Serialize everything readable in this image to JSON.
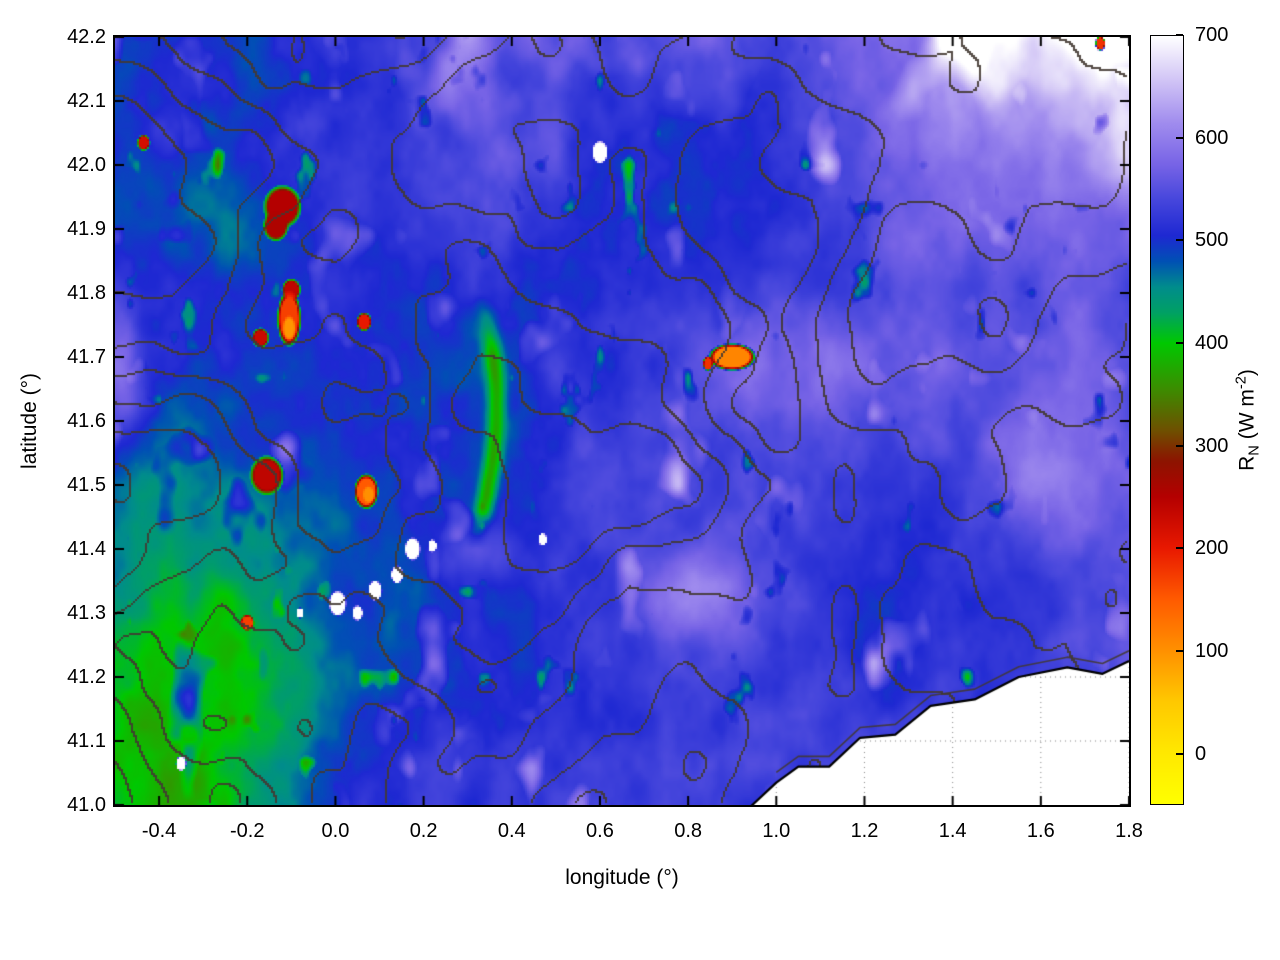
{
  "figure": {
    "background": "#ffffff"
  },
  "chart_data": {
    "type": "heatmap",
    "title": "",
    "xlabel": "longitude (°)",
    "ylabel": "latitude (°)",
    "x_range": [
      -0.5,
      1.8
    ],
    "y_range": [
      41.0,
      42.2
    ],
    "x_ticks": [
      -0.4,
      -0.2,
      0.0,
      0.2,
      0.4,
      0.6,
      0.8,
      1.0,
      1.2,
      1.4,
      1.6,
      1.8
    ],
    "x_tick_labels": [
      "-0.4",
      "-0.2",
      "0.0",
      "0.2",
      "0.4",
      "0.6",
      "0.8",
      "1.0",
      "1.2",
      "1.4",
      "1.6",
      "1.8"
    ],
    "y_ticks": [
      41.0,
      41.1,
      41.2,
      41.3,
      41.4,
      41.5,
      41.6,
      41.7,
      41.8,
      41.9,
      42.0,
      42.1,
      42.2
    ],
    "y_tick_labels": [
      "41.0",
      "41.1",
      "41.2",
      "41.3",
      "41.4",
      "41.5",
      "41.6",
      "41.7",
      "41.8",
      "41.9",
      "42.0",
      "42.1",
      "42.2"
    ],
    "legend_position": "right-colorbar",
    "grid": "dotted, visible only over white sea area",
    "colorbar": {
      "label_parts": {
        "symbol": "R",
        "subscript": "N",
        "units": " (W m",
        "exponent": "-2",
        "close": ")"
      },
      "range": [
        -50,
        700
      ],
      "ticks": [
        0,
        100,
        200,
        300,
        400,
        500,
        600,
        700
      ],
      "tick_labels": [
        "0",
        "100",
        "200",
        "300",
        "400",
        "500",
        "600",
        "700"
      ],
      "palette": [
        {
          "v": -50,
          "c": "#ffff00"
        },
        {
          "v": 0,
          "c": "#ffe800"
        },
        {
          "v": 50,
          "c": "#ffc800"
        },
        {
          "v": 100,
          "c": "#ff9000"
        },
        {
          "v": 150,
          "c": "#ff5a00"
        },
        {
          "v": 200,
          "c": "#e81800"
        },
        {
          "v": 250,
          "c": "#b40000"
        },
        {
          "v": 285,
          "c": "#8c1400"
        },
        {
          "v": 315,
          "c": "#6e5000"
        },
        {
          "v": 355,
          "c": "#3c8c00"
        },
        {
          "v": 400,
          "c": "#00c800"
        },
        {
          "v": 430,
          "c": "#00a064"
        },
        {
          "v": 455,
          "c": "#008c8c"
        },
        {
          "v": 480,
          "c": "#0050b4"
        },
        {
          "v": 505,
          "c": "#1e28d2"
        },
        {
          "v": 540,
          "c": "#4646dc"
        },
        {
          "v": 575,
          "c": "#7864e6"
        },
        {
          "v": 615,
          "c": "#a08cee"
        },
        {
          "v": 655,
          "c": "#cfc2f5"
        },
        {
          "v": 700,
          "c": "#ffffff"
        }
      ]
    },
    "contours": {
      "levels": [
        0.34,
        0.42,
        0.5,
        0.58,
        0.66
      ],
      "color": "#423832",
      "meaning": "unlabeled terrain contour overlay"
    },
    "field": {
      "base": 520,
      "hotspots": [
        {
          "x": -0.12,
          "y": 41.935,
          "rx": 0.045,
          "ry": 0.035,
          "v": 250
        },
        {
          "x": -0.135,
          "y": 41.905,
          "rx": 0.03,
          "ry": 0.025,
          "v": 255
        },
        {
          "x": -0.1,
          "y": 41.805,
          "rx": 0.022,
          "ry": 0.018,
          "v": 240
        },
        {
          "x": -0.105,
          "y": 41.76,
          "rx": 0.028,
          "ry": 0.045,
          "v": 170
        },
        {
          "x": -0.105,
          "y": 41.745,
          "rx": 0.015,
          "ry": 0.02,
          "v": 95
        },
        {
          "x": -0.17,
          "y": 41.73,
          "rx": 0.02,
          "ry": 0.016,
          "v": 230
        },
        {
          "x": 0.065,
          "y": 41.755,
          "rx": 0.018,
          "ry": 0.015,
          "v": 200
        },
        {
          "x": -0.155,
          "y": 41.515,
          "rx": 0.04,
          "ry": 0.032,
          "v": 240
        },
        {
          "x": 0.07,
          "y": 41.49,
          "rx": 0.028,
          "ry": 0.028,
          "v": 150
        },
        {
          "x": 0.075,
          "y": 41.485,
          "rx": 0.014,
          "ry": 0.014,
          "v": 100
        },
        {
          "x": 0.9,
          "y": 41.7,
          "rx": 0.055,
          "ry": 0.022,
          "v": 110
        },
        {
          "x": 0.845,
          "y": 41.69,
          "rx": 0.012,
          "ry": 0.012,
          "v": 180
        },
        {
          "x": -0.2,
          "y": 41.285,
          "rx": 0.016,
          "ry": 0.013,
          "v": 170
        },
        {
          "x": -0.435,
          "y": 42.035,
          "rx": 0.015,
          "ry": 0.013,
          "v": 220
        },
        {
          "x": 1.735,
          "y": 42.19,
          "rx": 0.012,
          "ry": 0.012,
          "v": 180
        }
      ],
      "white_spots": [
        {
          "x": 0.005,
          "y": 41.315,
          "r": 0.02
        },
        {
          "x": 0.05,
          "y": 41.3,
          "r": 0.012
        },
        {
          "x": 0.09,
          "y": 41.335,
          "r": 0.016
        },
        {
          "x": 0.14,
          "y": 41.36,
          "r": 0.014
        },
        {
          "x": 0.175,
          "y": 41.4,
          "r": 0.018
        },
        {
          "x": 0.22,
          "y": 41.405,
          "r": 0.01
        },
        {
          "x": -0.08,
          "y": 41.3,
          "r": 0.008
        },
        {
          "x": 0.6,
          "y": 42.02,
          "r": 0.018
        },
        {
          "x": -0.35,
          "y": 41.065,
          "r": 0.012
        },
        {
          "x": 0.47,
          "y": 41.415,
          "r": 0.01
        }
      ],
      "coastline": [
        [
          0.93,
          40.99
        ],
        [
          1.0,
          41.035
        ],
        [
          1.05,
          41.06
        ],
        [
          1.12,
          41.06
        ],
        [
          1.19,
          41.105
        ],
        [
          1.27,
          41.11
        ],
        [
          1.35,
          41.155
        ],
        [
          1.45,
          41.165
        ],
        [
          1.55,
          41.2
        ],
        [
          1.66,
          41.215
        ],
        [
          1.74,
          41.205
        ],
        [
          1.8,
          41.225
        ]
      ],
      "sea_color": "#ffffff"
    },
    "approx_values": {
      "note": "Net radiation estimated from colors (W m-2); null = sea (no data)",
      "lons": [
        -0.4,
        -0.2,
        0.0,
        0.2,
        0.4,
        0.6,
        0.8,
        1.0,
        1.2,
        1.4,
        1.6,
        1.8
      ],
      "lats": [
        42.1,
        41.9,
        41.7,
        41.5,
        41.3,
        41.1
      ],
      "matrix": [
        [
          545,
          550,
          560,
          585,
          610,
          590,
          565,
          560,
          570,
          600,
          645,
          680
        ],
        [
          470,
          520,
          545,
          555,
          555,
          550,
          550,
          555,
          560,
          575,
          595,
          630
        ],
        [
          455,
          490,
          530,
          540,
          545,
          550,
          555,
          565,
          580,
          590,
          570,
          560
        ],
        [
          450,
          470,
          520,
          535,
          540,
          545,
          550,
          555,
          560,
          565,
          560,
          575
        ],
        [
          435,
          450,
          500,
          530,
          545,
          555,
          575,
          590,
          570,
          555,
          550,
          560
        ],
        [
          445,
          465,
          510,
          540,
          550,
          555,
          560,
          545,
          null,
          null,
          null,
          null
        ]
      ]
    }
  }
}
